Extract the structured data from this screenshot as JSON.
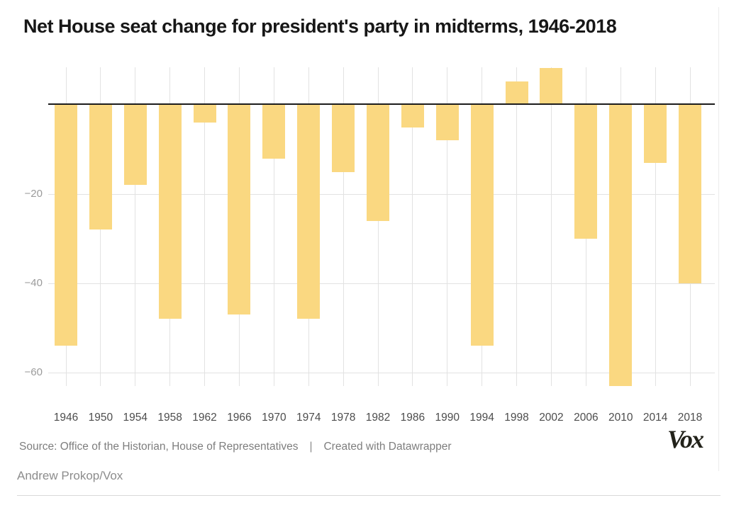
{
  "chart_data": {
    "type": "bar",
    "title": "Net House seat change for president's party in midterms, 1946-2018",
    "categories": [
      "1946",
      "1950",
      "1954",
      "1958",
      "1962",
      "1966",
      "1970",
      "1974",
      "1978",
      "1982",
      "1986",
      "1990",
      "1994",
      "1998",
      "2002",
      "2006",
      "2010",
      "2014",
      "2018"
    ],
    "values": [
      -54,
      -28,
      -18,
      -48,
      -4,
      -47,
      -12,
      -48,
      -15,
      -26,
      -5,
      -8,
      -54,
      5,
      8,
      -30,
      -63,
      -13,
      -40
    ],
    "xlabel": "",
    "ylabel": "",
    "yticks": [
      -20,
      -40,
      -60
    ],
    "ylim": [
      9,
      -63
    ],
    "grid": true,
    "legend": "none",
    "bar_color": "#FAD881",
    "zero_line_color": "#1c1c1c",
    "gridline_color": "#e2e2e2",
    "ytick_color": "#9b9b9b",
    "xtick_color": "#4d4d4d"
  },
  "footer": {
    "source": "Source: Office of the Historian, House of Representatives",
    "separator": "|",
    "created": "Created with Datawrapper",
    "logo": "Vox",
    "byline": "Andrew Prokop/Vox"
  }
}
